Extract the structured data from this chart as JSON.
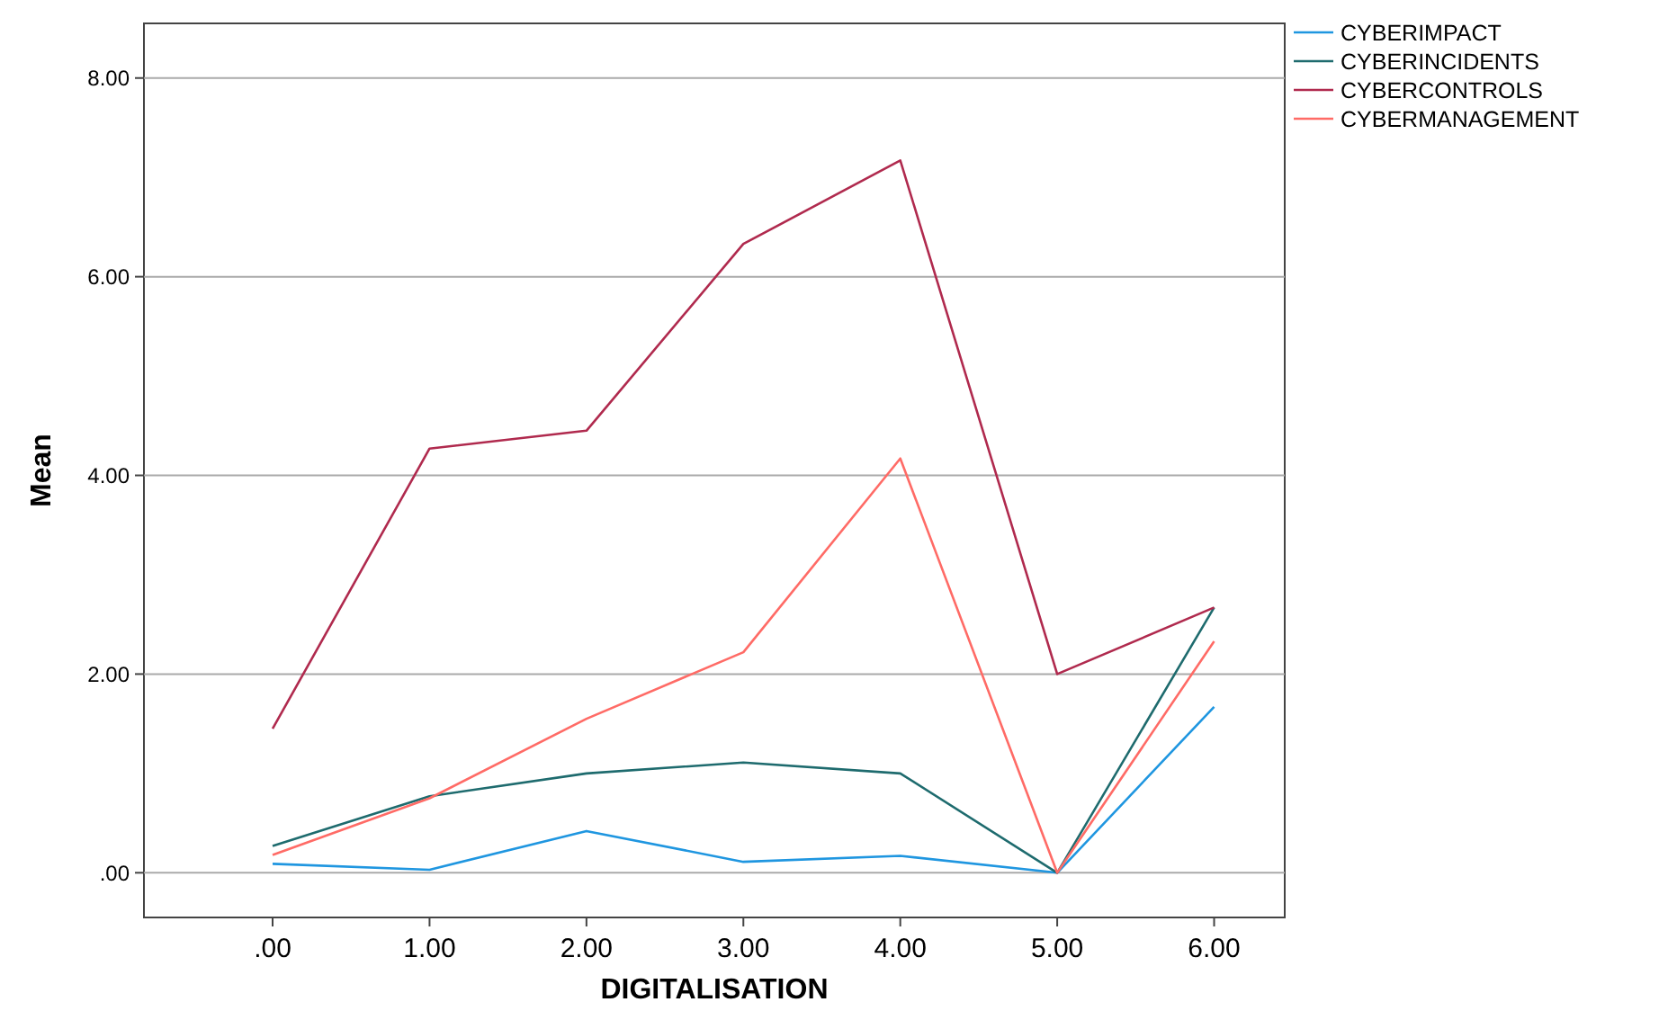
{
  "chart_data": {
    "type": "line",
    "xlabel": "DIGITALISATION",
    "ylabel": "Mean",
    "x": [
      0,
      1,
      2,
      3,
      4,
      5,
      6
    ],
    "xlim": [
      -0.82,
      6.45
    ],
    "xticks": [
      {
        "value": 0,
        "label": ".00"
      },
      {
        "value": 1,
        "label": "1.00"
      },
      {
        "value": 2,
        "label": "2.00"
      },
      {
        "value": 3,
        "label": "3.00"
      },
      {
        "value": 4,
        "label": "4.00"
      },
      {
        "value": 5,
        "label": "5.00"
      },
      {
        "value": 6,
        "label": "6.00"
      }
    ],
    "ylim": [
      -0.45,
      8.55
    ],
    "yticks": [
      {
        "value": 0,
        "label": ".00"
      },
      {
        "value": 2,
        "label": "2.00"
      },
      {
        "value": 4,
        "label": "4.00"
      },
      {
        "value": 6,
        "label": "6.00"
      },
      {
        "value": 8,
        "label": "8.00"
      }
    ],
    "grid": "y",
    "legend": "top right",
    "marker": "none",
    "line_style": "solid",
    "series": [
      {
        "name": "CYBERIMPACT",
        "color": "#1f96e0",
        "values": [
          0.09,
          0.03,
          0.42,
          0.11,
          0.17,
          0,
          1.67
        ]
      },
      {
        "name": "CYBERINCIDENTS",
        "color": "#1e6b6e",
        "values": [
          0.27,
          0.77,
          1.0,
          1.11,
          1.0,
          0,
          2.67
        ]
      },
      {
        "name": "CYBERCONTROLS",
        "color": "#b02a4e",
        "values": [
          1.45,
          4.27,
          4.45,
          6.33,
          7.17,
          2.0,
          2.67
        ]
      },
      {
        "name": "CYBERMANAGEMENT",
        "color": "#ff6b66",
        "values": [
          0.18,
          0.75,
          1.55,
          2.22,
          4.17,
          0,
          2.33
        ]
      }
    ]
  }
}
